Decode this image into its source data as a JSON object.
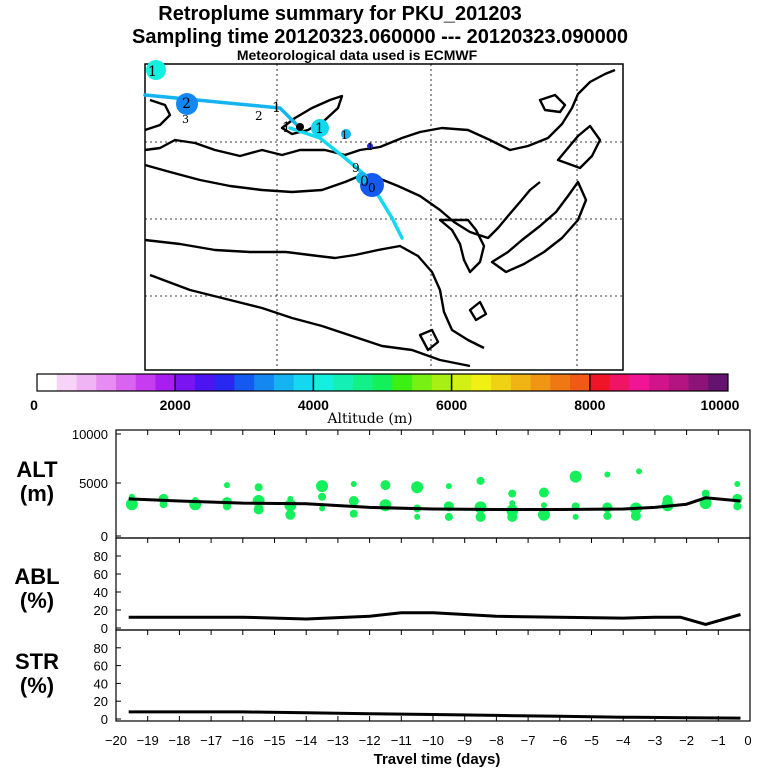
{
  "header": {
    "title_line1": "Retroplume summary for PKU_201203",
    "title_line2": "Sampling time   20120323.060000 --- 20120323.090000",
    "title_line3": "Meteorological data used is ECMWF"
  },
  "colorbar": {
    "label": "Altitude (m)",
    "ticks": [
      "0",
      "2000",
      "4000",
      "6000",
      "8000",
      "10000"
    ],
    "min": 0,
    "max": 10000,
    "colors": [
      "#ffffff",
      "#f7d4f7",
      "#f0b4f5",
      "#e68cf2",
      "#d964f0",
      "#c83cf0",
      "#a81ef0",
      "#7a14f0",
      "#4b14f0",
      "#2828f0",
      "#145af0",
      "#1488f0",
      "#14b4f0",
      "#14d8f0",
      "#14f0e0",
      "#14f0b4",
      "#14f088",
      "#14f05a",
      "#3cf014",
      "#78f014",
      "#a8f014",
      "#d2f014",
      "#f0f014",
      "#f0d214",
      "#f0b414",
      "#f09614",
      "#f07814",
      "#f05a14",
      "#f01428",
      "#f01464",
      "#f01496",
      "#d2148c",
      "#b41482",
      "#8c1478",
      "#64146e"
    ]
  },
  "map": {
    "trajectory_labels": [
      "1",
      "2",
      "3",
      "1",
      "1",
      "2",
      "1",
      "1",
      "1",
      "9",
      "0",
      "0"
    ],
    "colors": {
      "trajectory_light": "#14d8f0",
      "trajectory_mid": "#1488f0",
      "trajectory_dark": "#145af0"
    }
  },
  "chart_data": [
    {
      "type": "scatter",
      "panel": "ALT",
      "ylabel_line1": "ALT",
      "ylabel_line2": "(m)",
      "xlim": [
        -20,
        0
      ],
      "ylim": [
        0,
        10000
      ],
      "yticks": [
        "10000",
        "5000",
        "0"
      ],
      "mean_line": {
        "x": [
          -19.6,
          -18,
          -16,
          -14,
          -12,
          -10,
          -8,
          -6,
          -4,
          -3,
          -2,
          -1.4,
          -0.3
        ],
        "y": [
          3500,
          3300,
          3100,
          3050,
          2700,
          2550,
          2500,
          2500,
          2550,
          2700,
          3000,
          3600,
          3300
        ]
      },
      "points": {
        "x": [
          -19.5,
          -19.5,
          -18.5,
          -18.5,
          -17.5,
          -17.5,
          -16.5,
          -16.5,
          -16.5,
          -15.5,
          -15.5,
          -15.5,
          -14.5,
          -14.5,
          -14.5,
          -13.5,
          -13.5,
          -13.5,
          -12.5,
          -12.5,
          -12.5,
          -11.5,
          -11.5,
          -10.5,
          -10.5,
          -10.5,
          -9.5,
          -9.5,
          -9.5,
          -8.5,
          -8.5,
          -8.5,
          -7.5,
          -7.5,
          -7.5,
          -7.5,
          -6.5,
          -6.5,
          -6.5,
          -5.5,
          -5.5,
          -5.5,
          -4.5,
          -4.5,
          -4.5,
          -3.6,
          -3.6,
          -3.6,
          -3.5,
          -2.6,
          -2.6,
          -1.4,
          -1.4,
          -1.4,
          -0.4,
          -0.4,
          -0.4
        ],
        "y": [
          3700,
          3000,
          3500,
          3000,
          3400,
          3000,
          3200,
          2800,
          4800,
          3300,
          2500,
          4600,
          3500,
          2900,
          2000,
          3700,
          2600,
          4700,
          3300,
          2100,
          4900,
          2900,
          4800,
          2600,
          1800,
          4600,
          2800,
          1800,
          4700,
          2700,
          1800,
          5200,
          3100,
          2400,
          1800,
          4000,
          2900,
          2000,
          4100,
          2800,
          1800,
          5600,
          2700,
          1900,
          5800,
          2600,
          1900,
          2200,
          6100,
          2900,
          3400,
          4000,
          3600,
          3100,
          3500,
          2800,
          4900
        ],
        "color": "#14f05a"
      }
    },
    {
      "type": "line",
      "panel": "ABL",
      "ylabel_line1": "ABL",
      "ylabel_line2": "(%)",
      "xlim": [
        -20,
        0
      ],
      "ylim": [
        0,
        100
      ],
      "yticks": [
        "80",
        "60",
        "40",
        "20",
        "0"
      ],
      "x": [
        -19.6,
        -16,
        -14,
        -12,
        -11,
        -10,
        -8,
        -6,
        -4,
        -3,
        -2.2,
        -1.4,
        -0.3
      ],
      "y": [
        12,
        12,
        10,
        13,
        17,
        17,
        13,
        12,
        11,
        12,
        12,
        4,
        15
      ]
    },
    {
      "type": "line",
      "panel": "STR",
      "ylabel_line1": "STR",
      "ylabel_line2": "(%)",
      "xlim": [
        -20,
        0
      ],
      "ylim": [
        0,
        100
      ],
      "yticks": [
        "80",
        "60",
        "40",
        "20",
        "0"
      ],
      "xlabel": "Travel time (days)",
      "xticks": [
        "−20",
        "−19",
        "−18",
        "−17",
        "−16",
        "−15",
        "−14",
        "−13",
        "−12",
        "−11",
        "−10",
        "−9",
        "−8",
        "−7",
        "−6",
        "−5",
        "−4",
        "−3",
        "−2",
        "−1",
        "0"
      ],
      "x": [
        -19.6,
        -16,
        -14,
        -12,
        -10,
        -8,
        -6,
        -4,
        -2,
        -0.3
      ],
      "y": [
        8,
        8,
        7,
        6,
        5,
        4,
        3,
        2,
        1.5,
        1
      ]
    }
  ]
}
